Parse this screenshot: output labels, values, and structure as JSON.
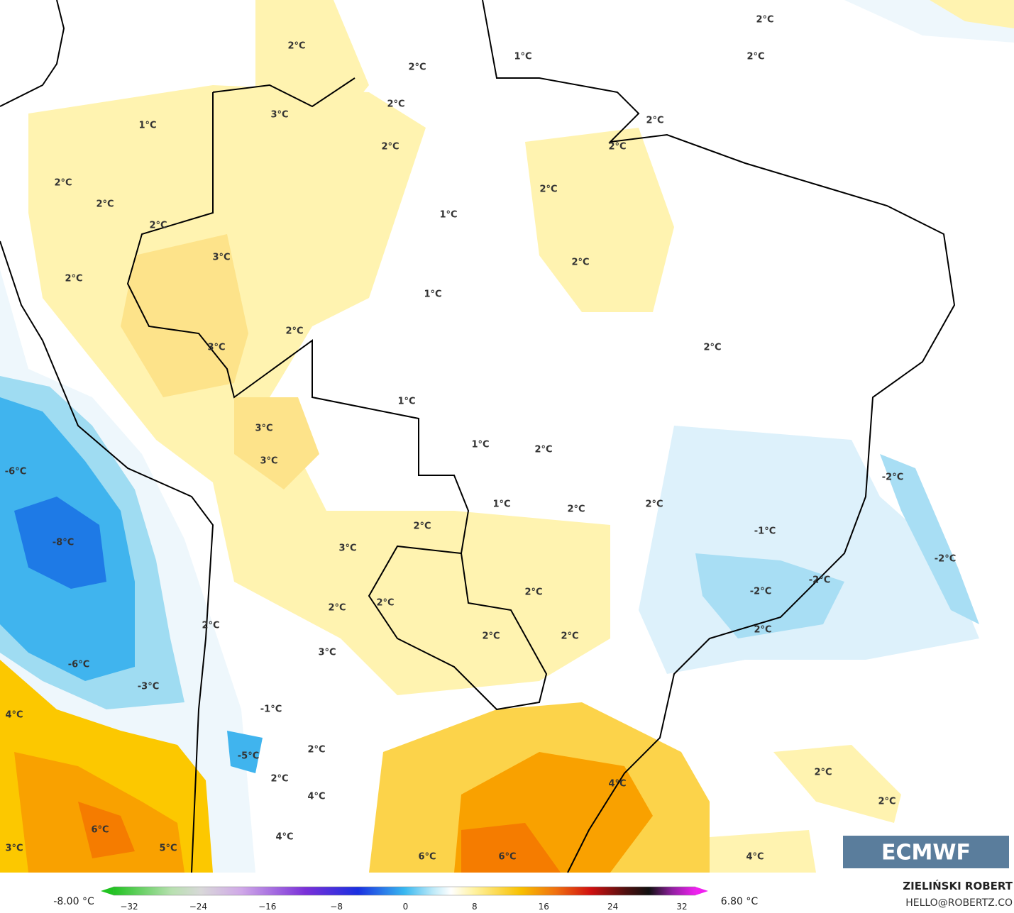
{
  "map": {
    "labels": [
      "2°C",
      "2°C",
      "2°C",
      "2°C",
      "1°C",
      "3°C",
      "2°C",
      "2°C",
      "1°C",
      "2°C",
      "2°C",
      "2°C",
      "2°C",
      "2°C",
      "2°C",
      "1°C",
      "3°C",
      "2°C",
      "2°C",
      "1°C",
      "2°C",
      "3°C",
      "2°C",
      "1°C",
      "3°C",
      "1°C",
      "2°C",
      "3°C",
      "-6°C",
      "-2°C",
      "1°C",
      "2°C",
      "2°C",
      "2°C",
      "-1°C",
      "-8°C",
      "3°C",
      "-2°C",
      "-2°C",
      "-2°C",
      "2°C",
      "2°C",
      "2°C",
      "2°C",
      "2°C",
      "2°C",
      "2°C",
      "3°C",
      "-6°C",
      "-3°C",
      "-1°C",
      "4°C",
      "2°C",
      "-5°C",
      "2°C",
      "2°C",
      "4°C",
      "4°C",
      "2°C",
      "6°C",
      "4°C",
      "3°C",
      "5°C",
      "6°C",
      "6°C",
      "4°C"
    ],
    "logo": "ECMWF"
  },
  "colorbar": {
    "min_label": "-8.00 °C",
    "max_label": "6.80 °C",
    "ticks": [
      "−32",
      "−24",
      "−16",
      "−8",
      "0",
      "8",
      "16",
      "24",
      "32"
    ]
  },
  "credit": {
    "author": "ZIELIŃSKI ROBERT",
    "email": "HELLO@ROBERTZ.CO"
  }
}
